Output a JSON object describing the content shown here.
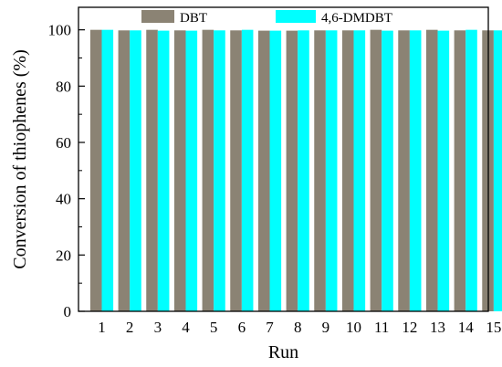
{
  "chart_data": {
    "type": "bar",
    "categories": [
      "1",
      "2",
      "3",
      "4",
      "5",
      "6",
      "7",
      "8",
      "9",
      "10",
      "11",
      "12",
      "13",
      "14",
      "15"
    ],
    "series": [
      {
        "name": "DBT",
        "color": "#8b8374",
        "values": [
          100,
          99.8,
          100,
          99.8,
          100,
          99.8,
          99.7,
          99.7,
          99.8,
          99.8,
          100,
          99.8,
          100,
          99.8,
          99.8
        ]
      },
      {
        "name": "4,6-DMDBT",
        "color": "#00ffff",
        "values": [
          100,
          99.8,
          99.7,
          99.7,
          99.8,
          100,
          99.7,
          99.8,
          99.8,
          99.8,
          99.7,
          99.8,
          99.7,
          100,
          99.8
        ]
      }
    ],
    "xlabel": "Run",
    "ylabel": "Conversion of thiophenes (%)",
    "ylim": [
      0,
      108
    ],
    "yticks": [
      "0",
      "20",
      "40",
      "60",
      "80",
      "100"
    ],
    "legend": "top"
  }
}
